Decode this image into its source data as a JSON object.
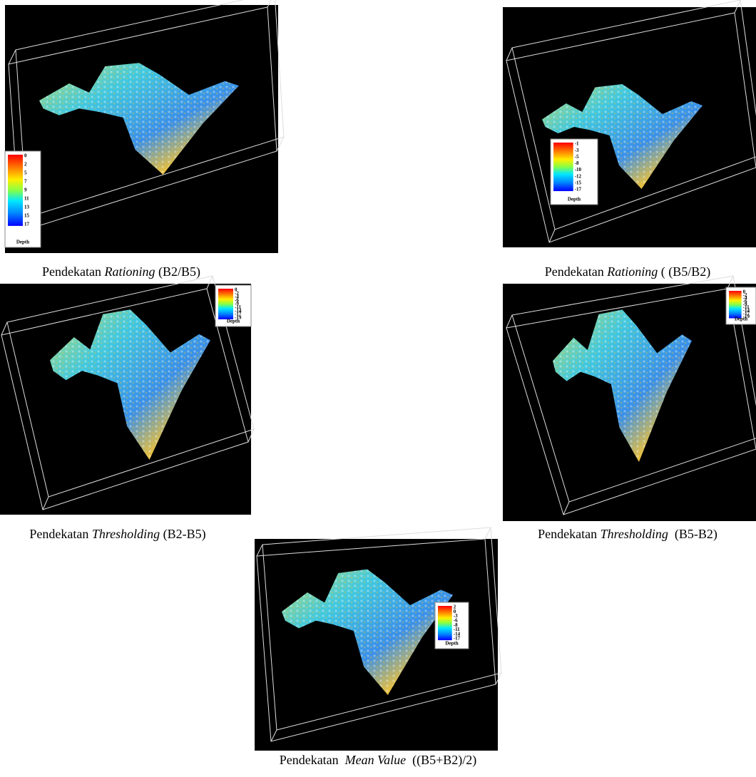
{
  "panels": [
    {
      "caption": {
        "prefix": "Pendekatan ",
        "italic": "Rationing",
        "suffix": " (B2/B5)"
      },
      "legend": {
        "labels": [
          "0",
          "2",
          "5",
          "7",
          "9",
          "11",
          "13",
          "15",
          "17"
        ],
        "title": "Depth"
      }
    },
    {
      "caption": {
        "prefix": "Pendekatan ",
        "italic": "Rationing",
        "suffix": " ( (B5/B2)"
      },
      "legend": {
        "labels": [
          "-1",
          "-3",
          "-5",
          "-8",
          "-10",
          "-12",
          "-15",
          "-17"
        ],
        "title": "Depth"
      }
    },
    {
      "caption": {
        "prefix": "Pendekatan ",
        "italic": "Thresholding",
        "suffix": " (B2-B5)"
      },
      "legend": {
        "labels": [
          "0",
          "-2",
          "-4",
          "-6",
          "-9",
          "-11",
          "-14",
          "-17",
          "-19"
        ],
        "title": "Depth"
      }
    },
    {
      "caption": {
        "prefix": "Pendekatan ",
        "italic": "Thresholding",
        "suffix": "  (B5-B2)"
      },
      "legend": {
        "labels": [
          "0",
          "-2",
          "-4",
          "-6",
          "-9",
          "-11",
          "-14",
          "-17",
          "-19"
        ],
        "title": "Depth"
      }
    },
    {
      "caption": {
        "prefix": "Pendekatan  ",
        "italic": "Mean Value",
        "suffix": "  ((B5+B2)/2)"
      },
      "legend": {
        "labels": [
          "2",
          "0",
          "-3",
          "-6",
          "-8",
          "-11",
          "-14",
          "-17"
        ],
        "title": "Depth"
      }
    }
  ]
}
